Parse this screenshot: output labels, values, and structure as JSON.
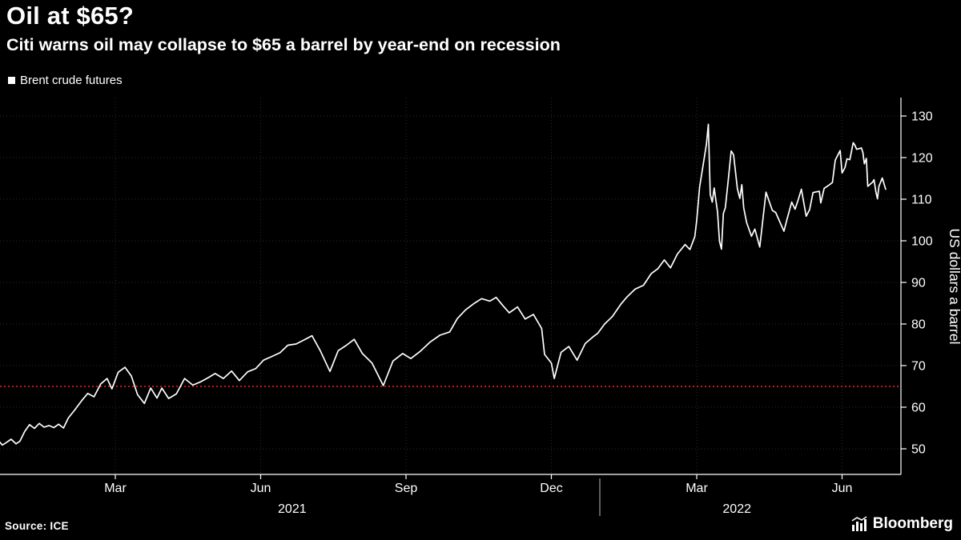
{
  "header": {
    "title": "Oil at $65?",
    "subtitle": "Citi warns oil may collapse to $65 a barrel by year-end on recession"
  },
  "legend": {
    "label": "Brent crude futures",
    "marker_color": "#ffffff",
    "marker_icon": "square-swatch-icon"
  },
  "source": {
    "label": "Source: ICE"
  },
  "branding": {
    "logo_text": "Bloomberg",
    "logo_icon": "chart-bars-icon"
  },
  "colors": {
    "background": "#000000",
    "series_line": "#ffffff",
    "grid": "#2b2b2b",
    "axis": "#ffffff",
    "reference": "#ff2222",
    "text": "#ffffff"
  },
  "chart_data": {
    "type": "line",
    "title": "Oil at $65?",
    "subtitle": "Citi warns oil may collapse to $65 a barrel by year-end on recession",
    "ylabel": "US dollars a barrel",
    "x_unit": "months since 2021-01-01",
    "xlim": [
      -0.45,
      18.2
    ],
    "ylim": [
      44,
      132
    ],
    "grid": true,
    "legend_position": "top-left",
    "y_ticks": [
      50,
      60,
      70,
      80,
      90,
      100,
      110,
      120,
      130
    ],
    "x_ticks": [
      {
        "label": "Mar",
        "t": 2
      },
      {
        "label": "Jun",
        "t": 5
      },
      {
        "label": "Sep",
        "t": 8
      },
      {
        "label": "Dec",
        "t": 11
      },
      {
        "label": "Mar",
        "t": 14
      },
      {
        "label": "Jun",
        "t": 17
      }
    ],
    "year_labels": [
      {
        "label": "2021",
        "t": 5.65
      },
      {
        "label": "2022",
        "t": 14.83
      }
    ],
    "year_divider_t": 12,
    "reference_line": {
      "value": 65,
      "color": "#ff2222",
      "style": "dotted"
    },
    "series": [
      {
        "name": "Brent crude futures",
        "color": "#ffffff",
        "points": [
          [
            -0.4,
            51.8
          ],
          [
            -0.33,
            50.9
          ],
          [
            -0.25,
            51.5
          ],
          [
            -0.15,
            52.3
          ],
          [
            -0.05,
            51.2
          ],
          [
            0.03,
            51.8
          ],
          [
            0.13,
            54.2
          ],
          [
            0.23,
            55.8
          ],
          [
            0.33,
            54.9
          ],
          [
            0.43,
            56.1
          ],
          [
            0.53,
            55.2
          ],
          [
            0.63,
            55.6
          ],
          [
            0.73,
            55.1
          ],
          [
            0.83,
            55.9
          ],
          [
            0.93,
            55.0
          ],
          [
            1.03,
            57.4
          ],
          [
            1.16,
            59.3
          ],
          [
            1.3,
            61.5
          ],
          [
            1.43,
            63.3
          ],
          [
            1.56,
            62.5
          ],
          [
            1.7,
            65.6
          ],
          [
            1.83,
            66.9
          ],
          [
            1.93,
            64.4
          ],
          [
            2.06,
            68.4
          ],
          [
            2.2,
            69.6
          ],
          [
            2.33,
            67.5
          ],
          [
            2.46,
            63.0
          ],
          [
            2.6,
            60.9
          ],
          [
            2.73,
            64.6
          ],
          [
            2.86,
            62.2
          ],
          [
            2.96,
            64.6
          ],
          [
            3.1,
            62.1
          ],
          [
            3.26,
            63.2
          ],
          [
            3.43,
            66.9
          ],
          [
            3.6,
            65.3
          ],
          [
            3.76,
            66.1
          ],
          [
            3.93,
            67.2
          ],
          [
            4.06,
            68.1
          ],
          [
            4.23,
            66.9
          ],
          [
            4.4,
            68.7
          ],
          [
            4.56,
            66.4
          ],
          [
            4.73,
            68.5
          ],
          [
            4.9,
            69.3
          ],
          [
            5.06,
            71.3
          ],
          [
            5.23,
            72.2
          ],
          [
            5.4,
            73.1
          ],
          [
            5.56,
            74.9
          ],
          [
            5.73,
            75.2
          ],
          [
            5.9,
            76.2
          ],
          [
            6.06,
            77.2
          ],
          [
            6.23,
            73.6
          ],
          [
            6.43,
            68.6
          ],
          [
            6.6,
            73.6
          ],
          [
            6.76,
            74.8
          ],
          [
            6.93,
            76.3
          ],
          [
            7.1,
            72.9
          ],
          [
            7.3,
            70.6
          ],
          [
            7.53,
            65.2
          ],
          [
            7.73,
            71.1
          ],
          [
            7.93,
            72.9
          ],
          [
            8.1,
            71.7
          ],
          [
            8.3,
            73.5
          ],
          [
            8.5,
            75.7
          ],
          [
            8.7,
            77.3
          ],
          [
            8.9,
            78.1
          ],
          [
            9.06,
            81.3
          ],
          [
            9.23,
            83.4
          ],
          [
            9.4,
            84.9
          ],
          [
            9.56,
            86.1
          ],
          [
            9.73,
            85.5
          ],
          [
            9.86,
            86.4
          ],
          [
            10.0,
            84.4
          ],
          [
            10.13,
            82.7
          ],
          [
            10.3,
            84.1
          ],
          [
            10.46,
            81.2
          ],
          [
            10.63,
            82.3
          ],
          [
            10.8,
            78.9
          ],
          [
            10.86,
            72.7
          ],
          [
            11.0,
            70.6
          ],
          [
            11.06,
            66.9
          ],
          [
            11.2,
            73.2
          ],
          [
            11.36,
            74.6
          ],
          [
            11.53,
            71.3
          ],
          [
            11.7,
            75.3
          ],
          [
            11.86,
            76.9
          ],
          [
            11.96,
            77.8
          ],
          [
            12.1,
            80.0
          ],
          [
            12.26,
            81.8
          ],
          [
            12.43,
            84.7
          ],
          [
            12.56,
            86.5
          ],
          [
            12.73,
            88.4
          ],
          [
            12.9,
            89.3
          ],
          [
            13.06,
            92.1
          ],
          [
            13.2,
            93.3
          ],
          [
            13.33,
            95.4
          ],
          [
            13.46,
            93.5
          ],
          [
            13.6,
            96.8
          ],
          [
            13.76,
            99.1
          ],
          [
            13.86,
            97.9
          ],
          [
            13.96,
            101.0
          ],
          [
            14.0,
            104.9
          ],
          [
            14.06,
            112.9
          ],
          [
            14.13,
            118.1
          ],
          [
            14.2,
            123.2
          ],
          [
            14.24,
            128.0
          ],
          [
            14.28,
            111.1
          ],
          [
            14.32,
            109.3
          ],
          [
            14.36,
            112.7
          ],
          [
            14.43,
            106.9
          ],
          [
            14.47,
            99.9
          ],
          [
            14.51,
            98.0
          ],
          [
            14.55,
            106.6
          ],
          [
            14.59,
            107.9
          ],
          [
            14.66,
            115.6
          ],
          [
            14.71,
            121.6
          ],
          [
            14.76,
            120.7
          ],
          [
            14.84,
            112.5
          ],
          [
            14.89,
            110.2
          ],
          [
            14.93,
            113.5
          ],
          [
            14.97,
            107.9
          ],
          [
            15.03,
            104.4
          ],
          [
            15.13,
            101.1
          ],
          [
            15.2,
            102.8
          ],
          [
            15.3,
            98.5
          ],
          [
            15.36,
            104.6
          ],
          [
            15.43,
            111.7
          ],
          [
            15.56,
            107.3
          ],
          [
            15.63,
            106.8
          ],
          [
            15.8,
            102.3
          ],
          [
            15.86,
            105.0
          ],
          [
            15.96,
            109.3
          ],
          [
            16.03,
            107.6
          ],
          [
            16.1,
            110.1
          ],
          [
            16.16,
            112.4
          ],
          [
            16.26,
            105.9
          ],
          [
            16.33,
            107.5
          ],
          [
            16.4,
            111.6
          ],
          [
            16.53,
            111.9
          ],
          [
            16.56,
            109.1
          ],
          [
            16.63,
            112.6
          ],
          [
            16.73,
            113.4
          ],
          [
            16.8,
            114.0
          ],
          [
            16.86,
            119.4
          ],
          [
            16.96,
            121.7
          ],
          [
            17.0,
            116.3
          ],
          [
            17.06,
            117.6
          ],
          [
            17.1,
            119.7
          ],
          [
            17.16,
            119.5
          ],
          [
            17.23,
            123.6
          ],
          [
            17.26,
            123.1
          ],
          [
            17.3,
            122.0
          ],
          [
            17.4,
            122.3
          ],
          [
            17.43,
            121.2
          ],
          [
            17.46,
            118.5
          ],
          [
            17.5,
            119.8
          ],
          [
            17.53,
            113.1
          ],
          [
            17.63,
            114.1
          ],
          [
            17.66,
            114.7
          ],
          [
            17.7,
            111.7
          ],
          [
            17.73,
            110.1
          ],
          [
            17.76,
            113.1
          ],
          [
            17.83,
            115.1
          ],
          [
            17.9,
            112.4
          ]
        ]
      }
    ]
  }
}
